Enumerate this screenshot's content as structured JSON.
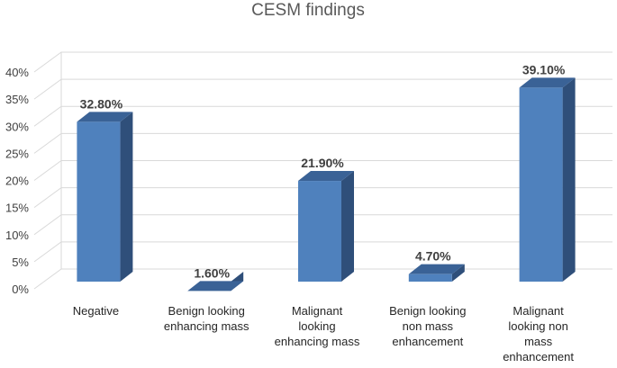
{
  "chart_data": {
    "type": "bar",
    "style": "3d-column",
    "title": "CESM findings",
    "xlabel": "",
    "ylabel": "",
    "ylim": [
      0,
      40
    ],
    "yticks": [
      "0%",
      "5%",
      "10%",
      "15%",
      "20%",
      "25%",
      "30%",
      "35%",
      "40%"
    ],
    "grid": true,
    "legend": "none",
    "bar_color": "#4f81bd",
    "categories": [
      [
        "Negative"
      ],
      [
        "Benign looking",
        "enhancing mass"
      ],
      [
        "Malignant",
        "looking",
        "enhancing mass"
      ],
      [
        "Benign looking",
        "non mass",
        "enhancement"
      ],
      [
        "Malignant",
        "looking non",
        "mass",
        "enhancement"
      ]
    ],
    "values": [
      32.8,
      1.6,
      21.9,
      4.7,
      39.1
    ],
    "data_labels": [
      "32.80%",
      "1.60%",
      "21.90%",
      "4.70%",
      "39.10%"
    ]
  }
}
